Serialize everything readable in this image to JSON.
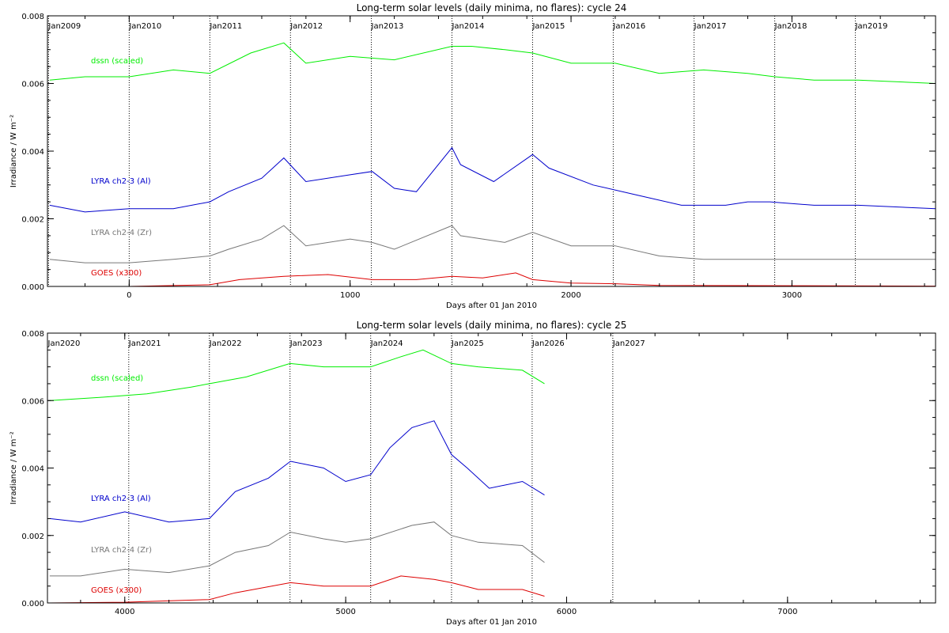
{
  "chart_data": [
    {
      "type": "line",
      "title": "Long-term solar levels (daily minima, no flares): cycle 24",
      "xlabel": "Days after 01 Jan 2010",
      "ylabel": "Irradiance / W m⁻²",
      "xlim": [
        -370,
        3650
      ],
      "ylim": [
        0,
        0.008
      ],
      "xticks": [
        0,
        1000,
        2000,
        3000
      ],
      "yticks": [
        0.0,
        0.002,
        0.004,
        0.006,
        0.008
      ],
      "ytick_labels": [
        "0.000",
        "0.002",
        "0.004",
        "0.006",
        "0.008"
      ],
      "year_markers": [
        {
          "label": "Jan2009",
          "day": -365
        },
        {
          "label": "Jan2010",
          "day": 0
        },
        {
          "label": "Jan2011",
          "day": 365
        },
        {
          "label": "Jan2012",
          "day": 730
        },
        {
          "label": "Jan2013",
          "day": 1096
        },
        {
          "label": "Jan2014",
          "day": 1461
        },
        {
          "label": "Jan2015",
          "day": 1826
        },
        {
          "label": "Jan2016",
          "day": 2191
        },
        {
          "label": "Jan2017",
          "day": 2557
        },
        {
          "label": "Jan2018",
          "day": 2922
        },
        {
          "label": "Jan2019",
          "day": 3287
        }
      ],
      "series": [
        {
          "name": "dssn (scaled)",
          "color": "#00ee00",
          "x": [
            -360,
            -200,
            0,
            200,
            365,
            550,
            700,
            800,
            1000,
            1200,
            1461,
            1550,
            1700,
            1826,
            2000,
            2200,
            2400,
            2600,
            2800,
            2922,
            3100,
            3300,
            3650
          ],
          "y": [
            0.0061,
            0.0062,
            0.0062,
            0.0064,
            0.0063,
            0.0069,
            0.0072,
            0.0066,
            0.0068,
            0.0067,
            0.0071,
            0.0071,
            0.007,
            0.0069,
            0.0066,
            0.0066,
            0.0063,
            0.0064,
            0.0063,
            0.0062,
            0.0061,
            0.0061,
            0.006
          ]
        },
        {
          "name": "LYRA ch2-3 (Al)",
          "color": "#0000cc",
          "x": [
            -360,
            -200,
            0,
            200,
            365,
            450,
            600,
            700,
            800,
            1000,
            1100,
            1200,
            1300,
            1461,
            1500,
            1650,
            1826,
            1900,
            2100,
            2300,
            2500,
            2700,
            2800,
            2900,
            3100,
            3300,
            3650
          ],
          "y": [
            0.0024,
            0.0022,
            0.0023,
            0.0023,
            0.0025,
            0.0028,
            0.0032,
            0.0038,
            0.0031,
            0.0033,
            0.0034,
            0.0029,
            0.0028,
            0.0041,
            0.0036,
            0.0031,
            0.0039,
            0.0035,
            0.003,
            0.0027,
            0.0024,
            0.0024,
            0.0025,
            0.0025,
            0.0024,
            0.0024,
            0.0023
          ]
        },
        {
          "name": "LYRA ch2-4 (Zr)",
          "color": "#777777",
          "x": [
            -360,
            -200,
            0,
            200,
            365,
            450,
            600,
            700,
            800,
            1000,
            1100,
            1200,
            1461,
            1500,
            1700,
            1826,
            2000,
            2200,
            2400,
            2600,
            2800,
            3000,
            3300,
            3650
          ],
          "y": [
            0.0008,
            0.0007,
            0.0007,
            0.0008,
            0.0009,
            0.0011,
            0.0014,
            0.0018,
            0.0012,
            0.0014,
            0.0013,
            0.0011,
            0.0018,
            0.0015,
            0.0013,
            0.0016,
            0.0012,
            0.0012,
            0.0009,
            0.0008,
            0.0008,
            0.0008,
            0.0008,
            0.0008
          ]
        },
        {
          "name": "GOES (x300)",
          "color": "#dd0000",
          "x": [
            -360,
            0,
            365,
            500,
            700,
            900,
            1100,
            1300,
            1461,
            1600,
            1750,
            1826,
            2000,
            2200,
            2400,
            3000,
            3650
          ],
          "y": [
            0.0,
            0.0,
            5e-05,
            0.0002,
            0.0003,
            0.00035,
            0.0002,
            0.0002,
            0.0003,
            0.00025,
            0.0004,
            0.0002,
            0.0001,
            8e-05,
            3e-05,
            2e-05,
            1e-05
          ]
        }
      ]
    },
    {
      "type": "line",
      "title": "Long-term solar levels (daily minima, no flares): cycle 25",
      "xlabel": "Days after 01 Jan 2010",
      "ylabel": "Irradiance / W m⁻²",
      "xlim": [
        3650,
        7670
      ],
      "ylim": [
        0,
        0.008
      ],
      "xticks": [
        4000,
        5000,
        6000,
        7000
      ],
      "yticks": [
        0.0,
        0.002,
        0.004,
        0.006,
        0.008
      ],
      "ytick_labels": [
        "0.000",
        "0.002",
        "0.004",
        "0.006",
        "0.008"
      ],
      "year_markers": [
        {
          "label": "Jan2020",
          "day": 3652
        },
        {
          "label": "Jan2021",
          "day": 4018
        },
        {
          "label": "Jan2022",
          "day": 4383
        },
        {
          "label": "Jan2023",
          "day": 4748
        },
        {
          "label": "Jan2024",
          "day": 5113
        },
        {
          "label": "Jan2025",
          "day": 5479
        },
        {
          "label": "Jan2026",
          "day": 5844
        },
        {
          "label": "Jan2027",
          "day": 6209
        }
      ],
      "series": [
        {
          "name": "dssn (scaled)",
          "color": "#00ee00",
          "x": [
            3660,
            3900,
            4100,
            4300,
            4383,
            4550,
            4748,
            4900,
            5113,
            5250,
            5350,
            5479,
            5600,
            5800,
            5900
          ],
          "y": [
            0.006,
            0.0061,
            0.0062,
            0.0064,
            0.0065,
            0.0067,
            0.0071,
            0.007,
            0.007,
            0.0073,
            0.0075,
            0.0071,
            0.007,
            0.0069,
            0.0065
          ]
        },
        {
          "name": "LYRA ch2-3 (Al)",
          "color": "#0000cc",
          "x": [
            3660,
            3800,
            4000,
            4200,
            4383,
            4500,
            4650,
            4750,
            4900,
            5000,
            5113,
            5200,
            5300,
            5400,
            5479,
            5550,
            5650,
            5800,
            5900
          ],
          "y": [
            0.0025,
            0.0024,
            0.0027,
            0.0024,
            0.0025,
            0.0033,
            0.0037,
            0.0042,
            0.004,
            0.0036,
            0.0038,
            0.0046,
            0.0052,
            0.0054,
            0.0044,
            0.004,
            0.0034,
            0.0036,
            0.0032
          ]
        },
        {
          "name": "LYRA ch2-4 (Zr)",
          "color": "#777777",
          "x": [
            3660,
            3800,
            4000,
            4200,
            4383,
            4500,
            4650,
            4750,
            4900,
            5000,
            5113,
            5300,
            5400,
            5479,
            5600,
            5800,
            5900
          ],
          "y": [
            0.0008,
            0.0008,
            0.001,
            0.0009,
            0.0011,
            0.0015,
            0.0017,
            0.0021,
            0.0019,
            0.0018,
            0.0019,
            0.0023,
            0.0024,
            0.002,
            0.0018,
            0.0017,
            0.0012
          ]
        },
        {
          "name": "GOES (x300)",
          "color": "#dd0000",
          "x": [
            3660,
            4000,
            4383,
            4500,
            4750,
            4900,
            5113,
            5250,
            5400,
            5479,
            5600,
            5800,
            5900
          ],
          "y": [
            0.0,
            2e-05,
            0.0001,
            0.0003,
            0.0006,
            0.0005,
            0.0005,
            0.0008,
            0.0007,
            0.0006,
            0.0004,
            0.0004,
            0.0002
          ]
        }
      ]
    }
  ]
}
